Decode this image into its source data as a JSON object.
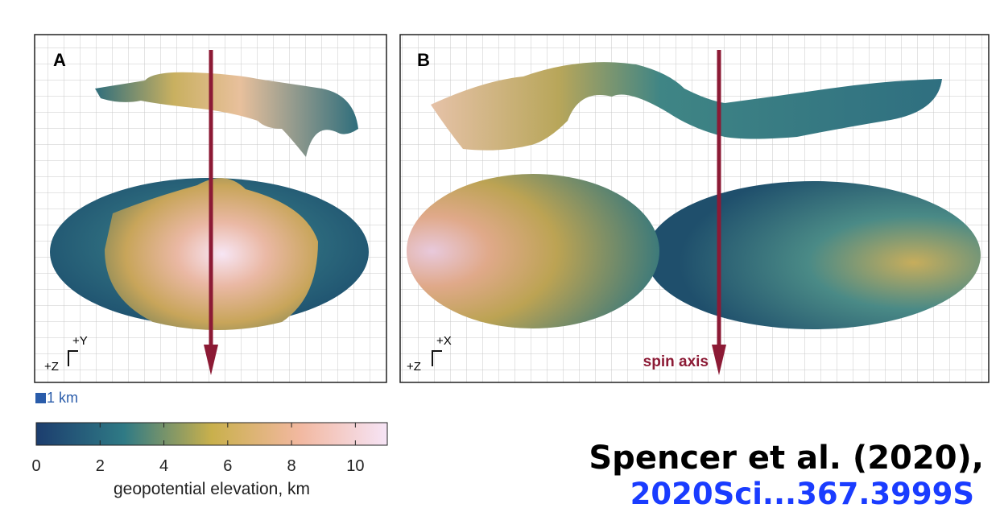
{
  "panels": [
    {
      "label": "A",
      "axes": {
        "up": "+Y",
        "out": "+Z"
      }
    },
    {
      "label": "B",
      "axes": {
        "up": "+X",
        "out": "+Z"
      },
      "spin_axis": "spin axis"
    }
  ],
  "scale_bar": "1 km",
  "colorbar": {
    "label": "geopotential elevation, km",
    "lim": [
      0,
      11
    ],
    "ticks": [
      0,
      2,
      4,
      6,
      8,
      10
    ],
    "colors": [
      "#1c3d6e",
      "#2f7a85",
      "#c9b04c",
      "#f2b8a0",
      "#f6e4f6"
    ]
  },
  "citation": {
    "text": "Spencer et al. (2020),",
    "link": "2020Sci...367.3999S"
  }
}
